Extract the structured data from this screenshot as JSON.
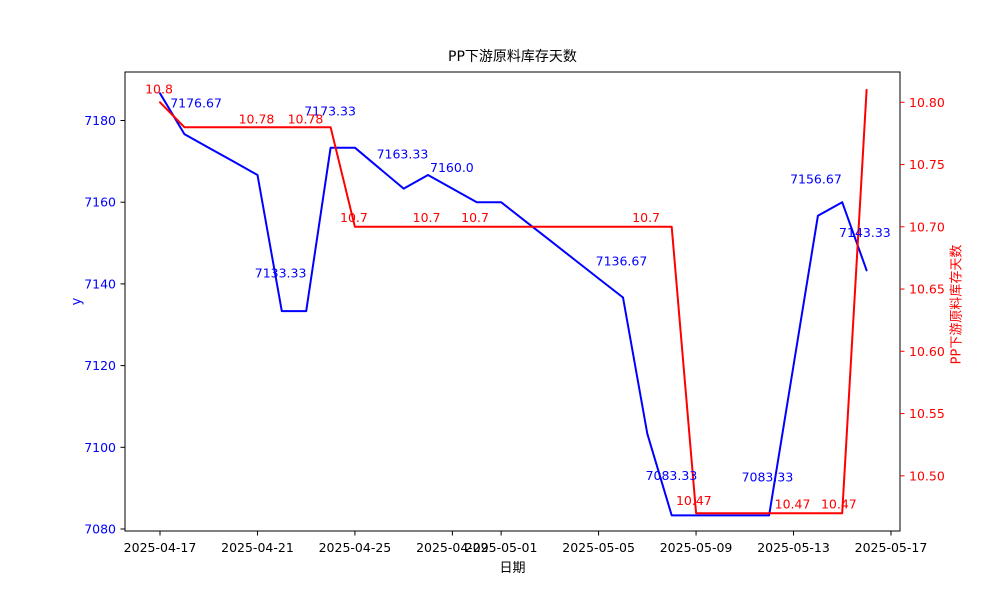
{
  "chart_data": {
    "type": "line",
    "title": "PP下游原料库存天数",
    "xlabel": "日期",
    "ylabel_left": "y",
    "ylabel_right": "PP下游原料库存天数",
    "colors": {
      "left_series": "#0000ff",
      "right_series": "#ff0000",
      "axis": "#000000"
    },
    "x_dates": [
      "2025-04-17",
      "2025-04-18",
      "2025-04-19",
      "2025-04-20",
      "2025-04-21",
      "2025-04-22",
      "2025-04-23",
      "2025-04-24",
      "2025-04-25",
      "2025-04-26",
      "2025-04-27",
      "2025-04-28",
      "2025-04-29",
      "2025-04-30",
      "2025-05-01",
      "2025-05-02",
      "2025-05-03",
      "2025-05-04",
      "2025-05-05",
      "2025-05-06",
      "2025-05-07",
      "2025-05-08",
      "2025-05-09",
      "2025-05-10",
      "2025-05-11",
      "2025-05-12",
      "2025-05-13",
      "2025-05-14",
      "2025-05-15",
      "2025-05-16"
    ],
    "series": [
      {
        "name": "y",
        "axis": "left",
        "color": "#0000ff",
        "values": [
          7186.67,
          7176.67,
          7173.33,
          7170.0,
          7166.67,
          7133.33,
          7133.33,
          7173.33,
          7173.33,
          7168.33,
          7163.33,
          7166.67,
          7163.33,
          7160.0,
          7160.0,
          7155.33,
          7150.67,
          7146.0,
          7141.33,
          7136.67,
          7103.33,
          7083.33,
          7083.33,
          7083.33,
          7083.33,
          7083.33,
          7120.0,
          7156.67,
          7160.0,
          7143.33
        ]
      },
      {
        "name": "PP下游原料库存天数",
        "axis": "right",
        "color": "#ff0000",
        "values": [
          10.8,
          10.78,
          10.78,
          10.78,
          10.78,
          10.78,
          10.78,
          10.78,
          10.7,
          10.7,
          10.7,
          10.7,
          10.7,
          10.7,
          10.7,
          10.7,
          10.7,
          10.7,
          10.7,
          10.7,
          10.7,
          10.7,
          10.47,
          10.47,
          10.47,
          10.47,
          10.47,
          10.47,
          10.47,
          10.81
        ]
      }
    ],
    "left_axis": {
      "tick_labels": [
        "7180",
        "7160",
        "7140",
        "7120",
        "7100",
        "7080"
      ],
      "tick_values": [
        7180,
        7160,
        7140,
        7120,
        7100,
        7080
      ],
      "range": [
        7079.5,
        7192.0
      ],
      "label_color": "#0000ff"
    },
    "right_axis": {
      "tick_labels": [
        "10.80",
        "10.75",
        "10.70",
        "10.65",
        "10.60",
        "10.55",
        "10.50"
      ],
      "tick_values": [
        10.8,
        10.75,
        10.7,
        10.65,
        10.6,
        10.55,
        10.5
      ],
      "range": [
        10.4558,
        10.8243
      ],
      "label_color": "#ff0000"
    },
    "x_axis": {
      "ticks": [
        {
          "label": "2025-04-17",
          "day": 0
        },
        {
          "label": "2025-04-21",
          "day": 4
        },
        {
          "label": "2025-04-25",
          "day": 8
        },
        {
          "label": "2025-04-29",
          "day": 12
        },
        {
          "label": "2025-05-01",
          "day": 14
        },
        {
          "label": "2025-05-05",
          "day": 18
        },
        {
          "label": "2025-05-09",
          "day": 22
        },
        {
          "label": "2025-05-13",
          "day": 26
        },
        {
          "label": "2025-05-17",
          "day": 30
        }
      ],
      "range_days": [
        -1.44,
        30.37
      ],
      "grid": false
    },
    "annotations": {
      "blue": [
        {
          "text": "7176.67",
          "day": 1.48,
          "value": 7184.3
        },
        {
          "text": "7133.33",
          "day": 4.95,
          "value": 7142.7
        },
        {
          "text": "7173.33",
          "day": 6.98,
          "value": 7182.3
        },
        {
          "text": "7163.33",
          "day": 9.95,
          "value": 7171.8
        },
        {
          "text": "7160.0",
          "day": 11.98,
          "value": 7168.5
        },
        {
          "text": "7136.67",
          "day": 18.94,
          "value": 7145.6
        },
        {
          "text": "7083.33",
          "day": 20.99,
          "value": 7093.1
        },
        {
          "text": "7083.33",
          "day": 24.93,
          "value": 7092.7
        },
        {
          "text": "7156.67",
          "day": 26.92,
          "value": 7165.7
        },
        {
          "text": "7143.33",
          "day": 28.93,
          "value": 7152.6
        }
      ],
      "red": [
        {
          "text": "10.8",
          "day": -0.04,
          "value": 10.8107
        },
        {
          "text": "10.78",
          "day": 3.96,
          "value": 10.7866
        },
        {
          "text": "10.78",
          "day": 5.97,
          "value": 10.7866
        },
        {
          "text": "10.7",
          "day": 7.96,
          "value": 10.7075
        },
        {
          "text": "10.7",
          "day": 10.94,
          "value": 10.7075
        },
        {
          "text": "10.7",
          "day": 12.93,
          "value": 10.7075
        },
        {
          "text": "10.7",
          "day": 19.95,
          "value": 10.7075
        },
        {
          "text": "10.47",
          "day": 21.91,
          "value": 10.4801
        },
        {
          "text": "10.47",
          "day": 25.96,
          "value": 10.4773
        },
        {
          "text": "10.47",
          "day": 27.86,
          "value": 10.4773
        }
      ]
    }
  }
}
